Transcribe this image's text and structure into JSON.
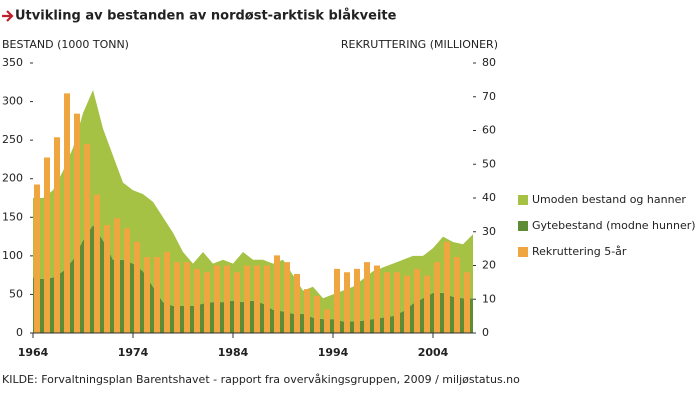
{
  "chart_data": {
    "type": "area",
    "title": "Utvikling av bestanden av nordøst-arktisk blåkveite",
    "y_label": "BESTAND (1000 TONN)",
    "y2_label": "REKRUTTERING (MILLIONER)",
    "source": "KILDE: Forvaltningsplan Barentshavet - rapport fra overvåkingsgruppen, 2009 / miljøstatus.no",
    "x": [
      1964,
      1965,
      1966,
      1967,
      1968,
      1969,
      1970,
      1971,
      1972,
      1973,
      1974,
      1975,
      1976,
      1977,
      1978,
      1979,
      1980,
      1981,
      1982,
      1983,
      1984,
      1985,
      1986,
      1987,
      1988,
      1989,
      1990,
      1991,
      1992,
      1993,
      1994,
      1995,
      1996,
      1997,
      1998,
      1999,
      2000,
      2001,
      2002,
      2003,
      2004,
      2005,
      2006,
      2007,
      2008
    ],
    "xlim": [
      1964,
      2008
    ],
    "xticks": [
      1964,
      1974,
      1984,
      1994,
      2004
    ],
    "ylim": [
      0,
      350
    ],
    "yticks": [
      0,
      50,
      100,
      150,
      200,
      250,
      300,
      350
    ],
    "y2lim": [
      0,
      80
    ],
    "y2ticks": [
      0,
      10,
      20,
      30,
      40,
      50,
      60,
      70,
      80
    ],
    "stacked": true,
    "series": [
      {
        "name": "Umoden bestand og hanner",
        "type": "area",
        "color": "#a5c244",
        "values": [
          103,
          105,
          113,
          130,
          145,
          165,
          175,
          145,
          135,
          100,
          95,
          100,
          110,
          110,
          95,
          70,
          55,
          67,
          50,
          55,
          48,
          65,
          53,
          57,
          60,
          67,
          50,
          30,
          40,
          27,
          32,
          40,
          45,
          54,
          62,
          65,
          68,
          67,
          62,
          55,
          58,
          73,
          71,
          70,
          83
        ]
      },
      {
        "name": "Gytebestand (modne hunner)",
        "type": "area",
        "color": "#5e8c34",
        "values": [
          72,
          70,
          72,
          80,
          95,
          120,
          140,
          120,
          95,
          95,
          90,
          80,
          60,
          40,
          35,
          35,
          35,
          38,
          40,
          40,
          42,
          40,
          42,
          38,
          30,
          28,
          25,
          25,
          20,
          18,
          18,
          15,
          15,
          16,
          18,
          20,
          22,
          28,
          38,
          45,
          52,
          52,
          47,
          45,
          45
        ]
      },
      {
        "name": "Rekruttering 5-år",
        "type": "bar",
        "axis": "y2",
        "color": "#f0a640",
        "values": [
          44,
          52,
          58,
          71,
          65,
          56,
          41,
          32,
          34,
          31,
          27,
          22.5,
          22.5,
          24,
          21,
          21,
          19,
          18,
          20,
          20,
          18,
          20,
          20,
          20,
          23,
          21,
          17.5,
          13,
          11,
          7,
          19,
          18,
          19,
          21,
          20,
          18,
          18,
          17,
          19,
          17,
          21,
          27,
          22.5,
          18,
          null
        ]
      }
    ],
    "legend": "right"
  }
}
